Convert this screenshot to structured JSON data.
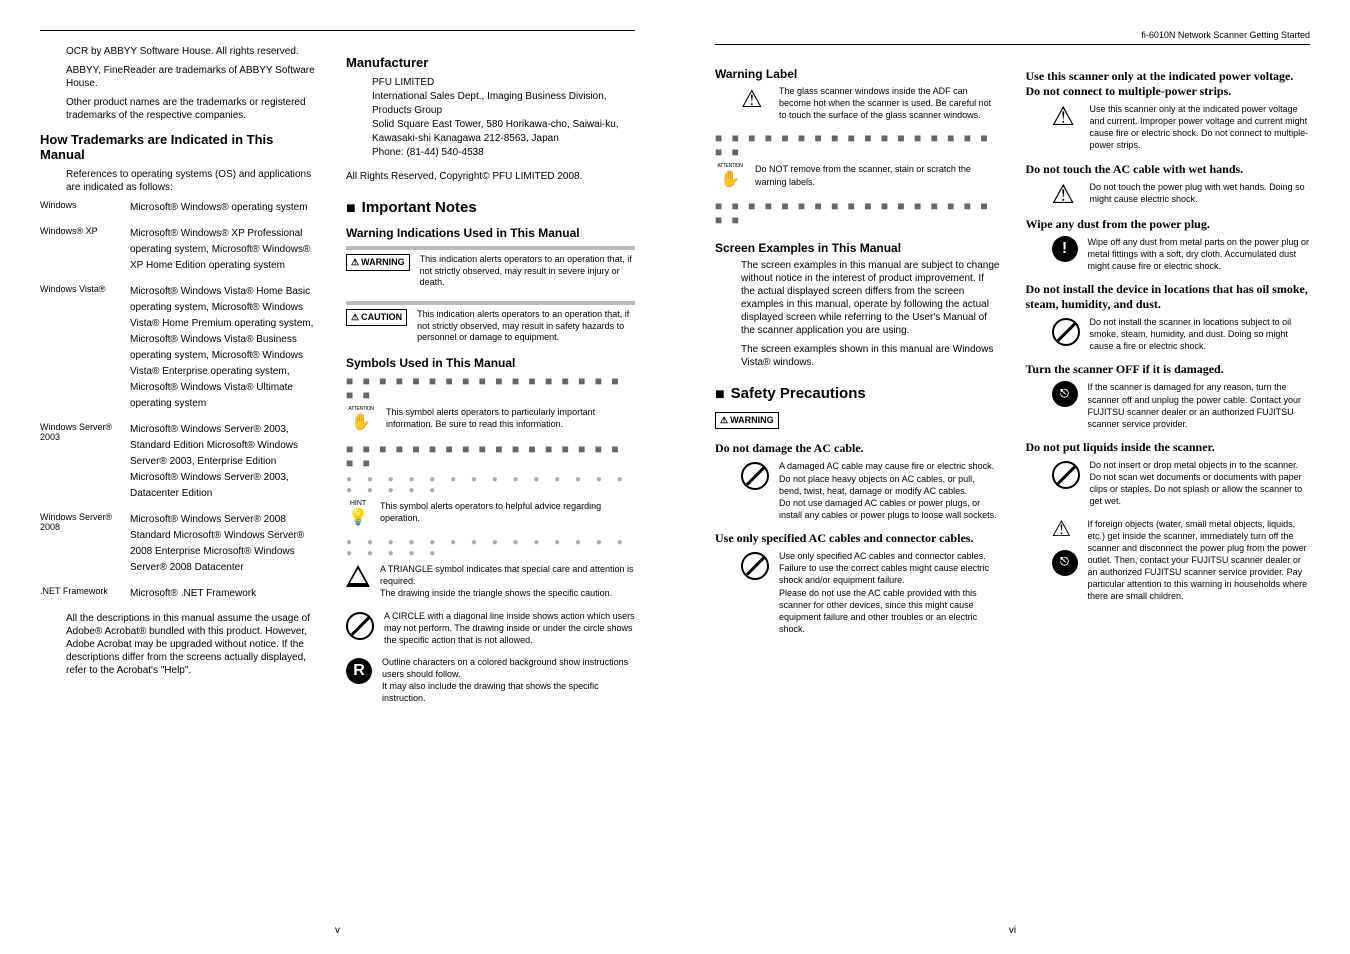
{
  "header_right": "fi-6010N Network Scanner Getting Started",
  "page_num_left": "v",
  "page_num_right": "vi",
  "left": {
    "trademarks_intro": [
      "OCR by ABBYY Software House. All rights reserved.",
      "ABBYY, FineReader are trademarks of ABBYY Software House.",
      "Other product names are the trademarks or registered trademarks of the respective companies."
    ],
    "h_trademarks": "How Trademarks are Indicated in This Manual",
    "trademarks_ref": "References to operating systems (OS) and applications are indicated as follows:",
    "os_rows": [
      {
        "k": "Windows",
        "v": "Microsoft® Windows® operating system"
      },
      {
        "k": "Windows® XP",
        "v": "Microsoft® Windows® XP Professional operating system, Microsoft® Windows® XP Home Edition operating system"
      },
      {
        "k": "Windows Vista®",
        "v": "Microsoft® Windows Vista® Home Basic operating system, Microsoft® Windows Vista® Home Premium operating system, Microsoft® Windows Vista® Business operating system, Microsoft® Windows Vista® Enterprise operating system, Microsoft® Windows Vista® Ultimate operating system"
      },
      {
        "k": "Windows Server® 2003",
        "v": "Microsoft® Windows Server® 2003, Standard Edition Microsoft® Windows Server® 2003, Enterprise Edition Microsoft® Windows Server® 2003, Datacenter Edition"
      },
      {
        "k": "Windows Server® 2008",
        "v": "Microsoft® Windows Server® 2008 Standard Microsoft® Windows Server® 2008 Enterprise Microsoft® Windows Server® 2008 Datacenter"
      },
      {
        "k": ".NET Framework",
        "v": "Microsoft® .NET Framework"
      }
    ],
    "acrobat_note": "All the descriptions in this manual assume the usage of Adobe® Acrobat® bundled with this product. However, Adobe Acrobat may be upgraded without notice. If the descriptions differ from the screens actually displayed, refer to the Acrobat's \"Help\".",
    "h_manufacturer": "Manufacturer",
    "mfr_lines": [
      "PFU LIMITED",
      "International Sales Dept., Imaging Business Division, Products Group",
      "Solid Square East Tower, 580 Horikawa-cho, Saiwai-ku, Kawasaki-shi Kanagawa 212-8563, Japan",
      "Phone: (81-44) 540-4538"
    ],
    "copyright": "All Rights Reserved, Copyright© PFU LIMITED 2008.",
    "h_important": "Important Notes",
    "h_warning_ind": "Warning Indications Used in This Manual",
    "warn_label": "WARNING",
    "warn_text": "This indication alerts operators to an operation that, if not strictly observed, may result in severe injury or death.",
    "caution_label": "CAUTION",
    "caution_text": "This indication alerts operators to an operation that, if not strictly observed, may result in safety hazards to personnel or damage to equipment.",
    "h_symbols": "Symbols Used in This Manual",
    "sym_attention": "This symbol alerts operators to particularly important information. Be sure to read this information.",
    "sym_hint": "This symbol alerts operators to helpful advice regarding operation.",
    "sym_triangle": "A TRIANGLE symbol indicates that special care and attention is required.\nThe drawing inside the triangle shows the specific caution.",
    "sym_circle": "A CIRCLE with a diagonal line inside shows action which users may not perform. The drawing inside or under the circle shows the specific action that is not allowed.",
    "sym_r": "Outline characters on a colored background show instructions users should follow.\nIt may also include the drawing that shows the specific instruction."
  },
  "right": {
    "h_warning_label": "Warning Label",
    "glass_text": "The glass scanner windows inside the ADF can become hot when the scanner is used. Be careful not to touch the surface of the glass scanner windows.",
    "remove_text": "Do NOT remove from the scanner, stain or scratch the warning labels.",
    "h_screen_examples": "Screen Examples in This Manual",
    "screen_text1": "The screen examples in this manual are subject to change without notice in the interest of product improvement. If the actual displayed screen differs from the screen examples in this manual, operate by following the actual displayed screen while referring to the User's Manual of the scanner application you are using.",
    "screen_text2": "The screen examples shown in this manual are Windows Vista® windows.",
    "h_safety": "Safety Precautions",
    "warn_badge": "WARNING",
    "items": [
      {
        "h": "Do not damage the AC cable.",
        "t": "A damaged AC cable may cause fire or electric shock. Do not place heavy objects on AC cables, or pull, bend, twist, heat, damage or modify AC cables.\nDo not use damaged AC cables or power plugs, or install any cables or power plugs to loose wall sockets.",
        "icon": "slash"
      },
      {
        "h": "Use only specified AC cables and connector cables.",
        "t": "Use only specified AC cables and connector cables. Failure to use the correct cables might cause electric shock and/or equipment failure.\nPlease do not use the AC cable provided with this scanner for other devices, since this might cause equipment failure and other troubles or an electric shock.",
        "icon": "slash"
      },
      {
        "h": "Use this scanner only at the indicated power voltage. Do not connect to multiple-power strips.",
        "t": "Use this scanner only at the indicated power voltage and current. Improper power voltage and current might cause fire or electric shock. Do not connect to multiple-power strips.",
        "icon": "elec"
      },
      {
        "h": "Do not touch the AC cable with wet hands.",
        "t": "Do not touch the power plug with wet hands. Doing so might cause electric shock.",
        "icon": "elec"
      },
      {
        "h": "Wipe any dust from the power plug.",
        "t": "Wipe off any dust from metal parts on the power plug or metal fittings with a soft, dry cloth. Accumulated dust might cause fire or electric shock.",
        "icon": "black"
      },
      {
        "h": "Do not install the device in locations that has oil smoke, steam, humidity, and dust.",
        "t": "Do not install the scanner in locations subject to oil smoke, steam, humidity, and dust. Doing so might cause a fire or electric shock.",
        "icon": "slash"
      },
      {
        "h": "Turn the scanner OFF if it is damaged.",
        "t": "If the scanner is damaged for any reason, turn the scanner off and unplug the power cable. Contact your FUJITSU scanner dealer or an authorized FUJITSU scanner service provider.",
        "icon": "plug"
      },
      {
        "h": "Do not put liquids inside the scanner.",
        "t": "Do not insert or drop metal objects in to the scanner. Do not scan wet documents or documents with paper clips or staples. Do not splash or allow the scanner to get wet.",
        "icon": "slash"
      },
      {
        "h2": "",
        "t2": "If foreign objects (water, small metal objects, liquids, etc.) get inside the scanner, immediately turn off the scanner and disconnect the power plug from the power outlet. Then, contact your FUJITSU scanner dealer or an authorized FUJITSU scanner service provider. Pay particular attention to this warning in households where there are small children.",
        "icon": "elecplug"
      }
    ]
  }
}
